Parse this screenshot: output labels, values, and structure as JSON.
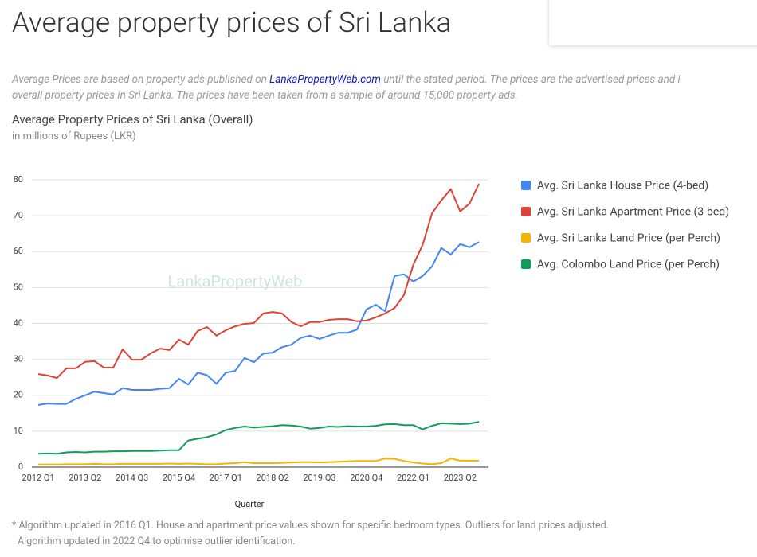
{
  "page_title": "Average property prices of Sri Lanka",
  "intro": {
    "line1_before": "Average Prices are based on property ads published on ",
    "link": "LankaPropertyWeb.com",
    "line1_after": " until the stated period. The prices are the advertised prices and i",
    "line2": "overall property prices in Sri Lanka. The prices have been taken from a sample of around 15,000 property ads."
  },
  "chart_data": {
    "type": "line",
    "title": "Average Property Prices of Sri Lanka (Overall)",
    "subtitle": "in millions of Rupees (LKR)",
    "x_label": "Quarter",
    "watermark": "LankaPropertyWeb",
    "categories": [
      "2012 Q1",
      null,
      null,
      null,
      null,
      "2013 Q2",
      null,
      null,
      null,
      null,
      "2014 Q3",
      null,
      null,
      null,
      null,
      "2015 Q4",
      null,
      null,
      null,
      null,
      "2017 Q1",
      null,
      null,
      null,
      null,
      "2018 Q2",
      null,
      null,
      null,
      null,
      "2019 Q3",
      null,
      null,
      null,
      null,
      "2020 Q4",
      null,
      null,
      null,
      null,
      "2022 Q1",
      null,
      null,
      null,
      null,
      "2023 Q2",
      null,
      null
    ],
    "series": [
      {
        "name": "Avg. Sri Lanka House Price (4-bed)",
        "color": "#4285f4",
        "values": [
          17.3,
          17.7,
          17.6,
          17.6,
          19,
          20,
          21,
          20.6,
          20.2,
          22,
          21.5,
          21.5,
          21.5,
          21.8,
          22,
          24.6,
          23,
          26.3,
          25.6,
          23.2,
          26.3,
          26.8,
          30.4,
          29.2,
          31.6,
          31.9,
          33.4,
          34.1,
          36,
          36.6,
          35.7,
          36.6,
          37.4,
          37.4,
          38.3,
          43.9,
          45.2,
          43.4,
          53.2,
          53.7,
          51.7,
          53.2,
          55.9,
          61,
          59.2,
          62.1,
          61.2,
          62.7
        ]
      },
      {
        "name": "Avg. Sri Lanka Apartment Price (3-bed)",
        "color": "#db4437",
        "values": [
          25.9,
          25.5,
          24.8,
          27.5,
          27.5,
          29.3,
          29.5,
          27.7,
          27.7,
          32.8,
          29.9,
          29.9,
          31.7,
          33,
          32.6,
          35.5,
          34.1,
          37.9,
          39,
          36.6,
          38.1,
          39.2,
          39.9,
          40.1,
          42.8,
          43.2,
          42.8,
          40.4,
          39.2,
          40.4,
          40.4,
          41,
          41.2,
          41.2,
          40.6,
          40.8,
          41.7,
          42.8,
          44.3,
          47.9,
          56.3,
          61.9,
          70.7,
          74.3,
          77.4,
          71.2,
          73.4,
          78.9
        ]
      },
      {
        "name": "Avg. Sri Lanka Land Price (per Perch)",
        "color": "#f4b400",
        "values": [
          0.7,
          0.7,
          0.7,
          0.8,
          0.8,
          0.8,
          0.9,
          0.8,
          0.8,
          0.9,
          0.9,
          0.9,
          0.9,
          0.9,
          1.0,
          0.9,
          1.0,
          0.9,
          0.8,
          0.8,
          1.0,
          1.1,
          1.4,
          1.1,
          1.1,
          1.1,
          1.2,
          1.3,
          1.4,
          1.4,
          1.3,
          1.4,
          1.5,
          1.6,
          1.7,
          1.7,
          1.7,
          2.4,
          2.3,
          1.7,
          1.3,
          1.0,
          0.8,
          1.1,
          2.4,
          1.8,
          1.8,
          1.8
        ]
      },
      {
        "name": "Avg. Colombo Land Price (per Perch)",
        "color": "#0f9d58",
        "values": [
          3.7,
          3.8,
          3.7,
          4.1,
          4.2,
          4.1,
          4.3,
          4.3,
          4.4,
          4.4,
          4.5,
          4.5,
          4.5,
          4.6,
          4.7,
          4.7,
          7.4,
          7.9,
          8.3,
          9.1,
          10.3,
          10.9,
          11.3,
          11.0,
          11.2,
          11.4,
          11.7,
          11.6,
          11.3,
          10.7,
          10.9,
          11.3,
          11.2,
          11.4,
          11.3,
          11.3,
          11.5,
          11.9,
          12.0,
          11.7,
          11.7,
          10.5,
          11.5,
          12.2,
          12.1,
          12.0,
          12.1,
          12.6
        ]
      }
    ],
    "ylim": [
      0,
      80
    ],
    "yticks": [
      0,
      10,
      20,
      30,
      40,
      50,
      60,
      70,
      80
    ],
    "grid": true,
    "legend": "right"
  },
  "footnote": {
    "line1": "* Algorithm updated in 2016 Q1. House and apartment price values shown for specific bedroom types. Outliers for land prices adjusted.",
    "line2": "Algorithm updated in 2022 Q4 to optimise outlier identification."
  }
}
